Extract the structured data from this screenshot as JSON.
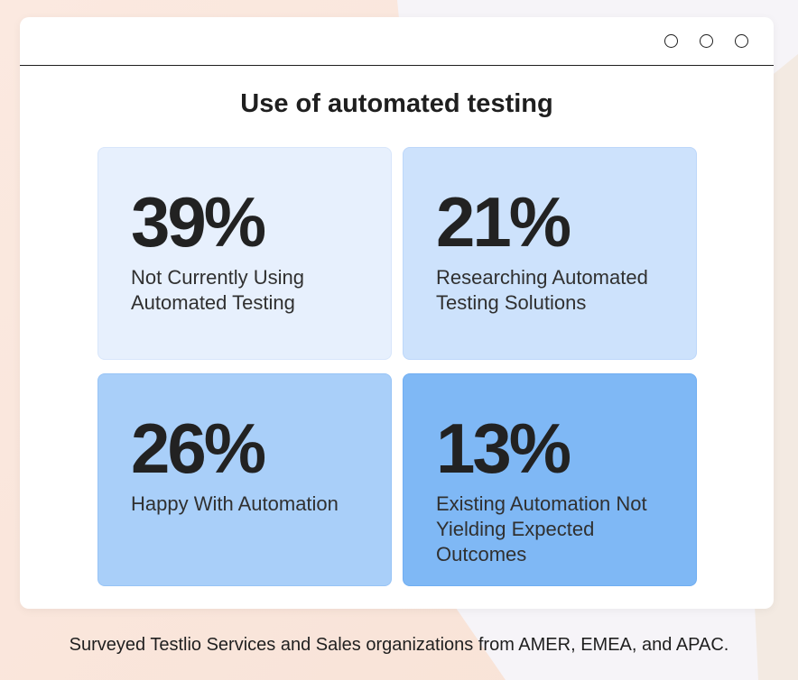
{
  "window": {
    "controls": [
      "circle-button",
      "circle-button",
      "circle-button"
    ]
  },
  "heading": "Use of automated testing",
  "tiles": [
    {
      "percent": "39%",
      "label": "Not Currently Using Automated Testing",
      "color": "#e7f0fd"
    },
    {
      "percent": "21%",
      "label": "Researching Automated Testing Solutions",
      "color": "#cde2fc"
    },
    {
      "percent": "26%",
      "label": "Happy With Automation",
      "color": "#a9cff9"
    },
    {
      "percent": "13%",
      "label": "Existing Automation Not Yielding Expected Outcomes",
      "color": "#7fb8f5"
    }
  ],
  "footer": "Surveyed Testlio Services and Sales organizations from AMER, EMEA, and APAC."
}
